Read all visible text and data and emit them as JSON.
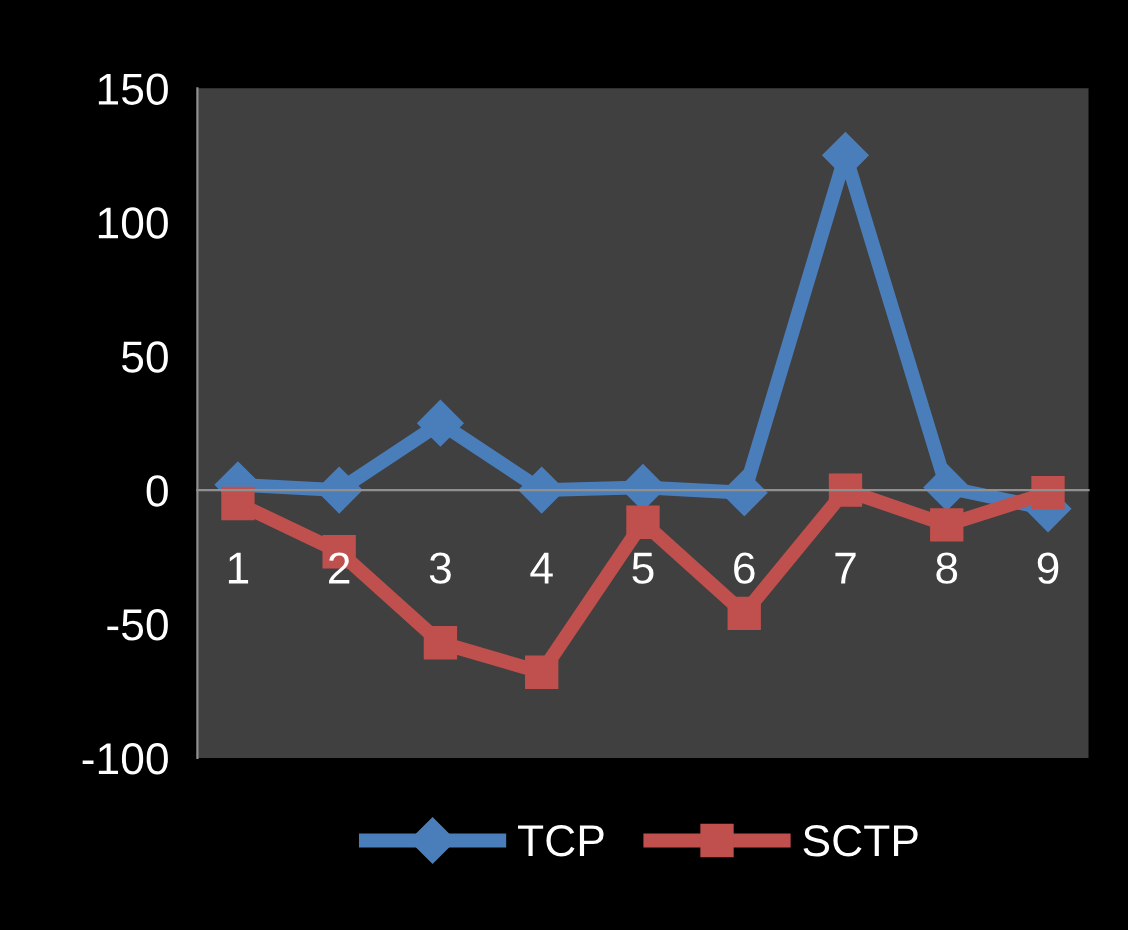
{
  "chart_data": {
    "type": "line",
    "categories": [
      "1",
      "2",
      "3",
      "4",
      "5",
      "6",
      "7",
      "8",
      "9"
    ],
    "series": [
      {
        "name": "TCP",
        "color": "#4a7ebb",
        "marker": "diamond",
        "values": [
          2,
          0,
          25,
          0,
          1,
          -1,
          125,
          1,
          -7
        ]
      },
      {
        "name": "SCTP",
        "color": "#c0504d",
        "marker": "square",
        "values": [
          -5,
          -23,
          -57,
          -68,
          -12,
          -46,
          0,
          -13,
          -1
        ]
      }
    ],
    "ylim": [
      -100,
      150
    ],
    "yticks": [
      -100,
      -50,
      0,
      50,
      100,
      150
    ],
    "grid": false,
    "legend": "bottom"
  }
}
